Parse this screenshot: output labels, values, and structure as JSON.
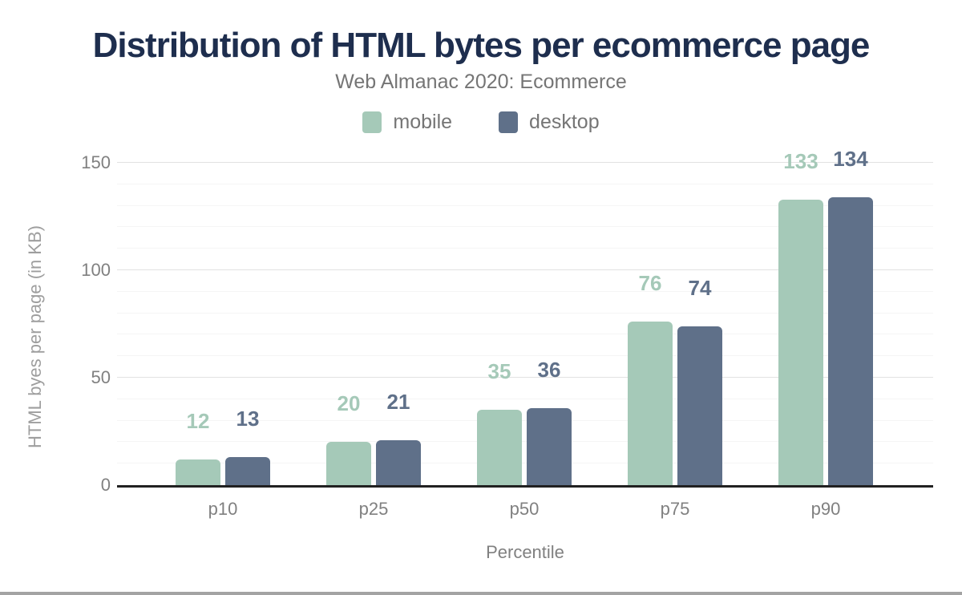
{
  "chart_data": {
    "type": "bar",
    "title": "Distribution of HTML bytes per ecommerce page",
    "subtitle": "Web Almanac 2020: Ecommerce",
    "categories": [
      "p10",
      "p25",
      "p50",
      "p75",
      "p90"
    ],
    "series": [
      {
        "name": "mobile",
        "color": "#a5c9b8",
        "values": [
          12,
          20,
          35,
          76,
          133
        ]
      },
      {
        "name": "desktop",
        "color": "#5f7089",
        "values": [
          13,
          21,
          36,
          74,
          134
        ]
      }
    ],
    "xlabel": "Percentile",
    "ylabel": "HTML byes per page (in KB)",
    "ylim": [
      0,
      150
    ],
    "yticks": [
      0,
      50,
      100,
      150
    ],
    "minor_grid_step": 10,
    "major_grid_step": 50,
    "grid": true,
    "legend_position": "top",
    "data_labels": true
  },
  "style": {
    "background": "#ffffff",
    "title_color": "#1e2e4e",
    "subtitle_color": "#757575",
    "legend_text_color": "#757575",
    "tick_label_color": "#808080",
    "axis_title_color": "#9e9e9e",
    "major_grid_color": "#e2e2e2",
    "minor_grid_color": "#f5f5f5",
    "axis_line_color": "#212121",
    "bottom_border_color": "#a3a3a3"
  }
}
